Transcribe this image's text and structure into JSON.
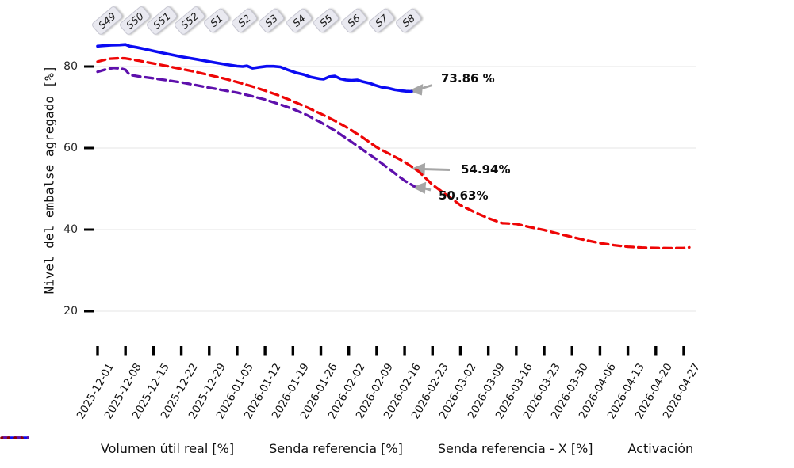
{
  "figure": {
    "week_labels": [
      "S49",
      "S50",
      "S51",
      "S52",
      "S1",
      "S2",
      "S3",
      "S4",
      "S5",
      "S6",
      "S7",
      "S8"
    ]
  },
  "chart_data": {
    "type": "line",
    "ylabel": "Nivel del embalse agregado [%]",
    "xlabel": "",
    "y_ticks": [
      80,
      60,
      40,
      20
    ],
    "ylim": [
      12,
      90
    ],
    "grid": "horizontal",
    "legend_position": "bottom",
    "x_labels": [
      "2025-12-01",
      "2025-12-08",
      "2025-12-15",
      "2025-12-22",
      "2025-12-29",
      "2026-01-05",
      "2026-01-12",
      "2026-01-19",
      "2026-01-26",
      "2026-02-02",
      "2026-02-09",
      "2026-02-16",
      "2026-02-23",
      "2026-03-02",
      "2026-03-09",
      "2026-03-16",
      "2026-03-23",
      "2026-03-30",
      "2026-04-06",
      "2026-04-13",
      "2026-04-20",
      "2026-04-27"
    ],
    "annotations": [
      {
        "text": "73.86 %",
        "series": "Volumen útil real [%]",
        "value": 73.86
      },
      {
        "text": "54.94%",
        "series": "Senda referencia [%]",
        "value": 54.94
      },
      {
        "text": "50.63%",
        "series": "Senda referencia - X [%]",
        "value": 50.63
      }
    ],
    "series": [
      {
        "name": "Volumen útil real [%]",
        "color": "#0b0bf2",
        "style": "solid",
        "points": [
          [
            0,
            85.0
          ],
          [
            0.2,
            85.1
          ],
          [
            0.5,
            85.25
          ],
          [
            0.8,
            85.3
          ],
          [
            1.0,
            85.4
          ],
          [
            1.15,
            85.0
          ],
          [
            1.4,
            84.7
          ],
          [
            1.65,
            84.35
          ],
          [
            2.0,
            83.8
          ],
          [
            2.35,
            83.3
          ],
          [
            2.65,
            82.9
          ],
          [
            3.0,
            82.4
          ],
          [
            3.3,
            82.05
          ],
          [
            3.6,
            81.7
          ],
          [
            4.0,
            81.2
          ],
          [
            4.3,
            80.85
          ],
          [
            4.6,
            80.5
          ],
          [
            5.0,
            80.1
          ],
          [
            5.2,
            80.0
          ],
          [
            5.35,
            80.15
          ],
          [
            5.55,
            79.6
          ],
          [
            5.8,
            79.85
          ],
          [
            6.05,
            80.05
          ],
          [
            6.3,
            80.05
          ],
          [
            6.55,
            79.9
          ],
          [
            6.8,
            79.2
          ],
          [
            7.1,
            78.5
          ],
          [
            7.4,
            78.0
          ],
          [
            7.65,
            77.4
          ],
          [
            7.95,
            77.0
          ],
          [
            8.1,
            76.9
          ],
          [
            8.3,
            77.5
          ],
          [
            8.5,
            77.65
          ],
          [
            8.7,
            77.0
          ],
          [
            8.9,
            76.7
          ],
          [
            9.1,
            76.6
          ],
          [
            9.3,
            76.7
          ],
          [
            9.5,
            76.3
          ],
          [
            9.75,
            75.9
          ],
          [
            9.95,
            75.4
          ],
          [
            10.2,
            74.9
          ],
          [
            10.4,
            74.7
          ],
          [
            10.65,
            74.3
          ],
          [
            10.85,
            74.1
          ],
          [
            11.05,
            73.95
          ],
          [
            11.25,
            73.86
          ]
        ]
      },
      {
        "name": "Senda referencia [%]",
        "color": "#ee0606",
        "style": "dashed",
        "points": [
          [
            0,
            81.2
          ],
          [
            0.4,
            81.9
          ],
          [
            0.8,
            82.05
          ],
          [
            1.0,
            82.0
          ],
          [
            1.5,
            81.4
          ],
          [
            2.0,
            80.75
          ],
          [
            2.5,
            80.1
          ],
          [
            3.0,
            79.4
          ],
          [
            3.5,
            78.7
          ],
          [
            4.0,
            77.9
          ],
          [
            4.5,
            77.1
          ],
          [
            5.0,
            76.2
          ],
          [
            5.5,
            75.2
          ],
          [
            6.0,
            74.1
          ],
          [
            6.5,
            72.9
          ],
          [
            7.0,
            71.5
          ],
          [
            7.5,
            70.0
          ],
          [
            8.0,
            68.4
          ],
          [
            8.5,
            66.7
          ],
          [
            9.0,
            64.8
          ],
          [
            9.5,
            62.6
          ],
          [
            10.0,
            60.2
          ],
          [
            10.5,
            58.4
          ],
          [
            11.0,
            56.6
          ],
          [
            11.5,
            54.3
          ],
          [
            12.0,
            51.0
          ],
          [
            12.5,
            48.5
          ],
          [
            13.0,
            46.0
          ],
          [
            13.5,
            44.3
          ],
          [
            14.0,
            42.8
          ],
          [
            14.5,
            41.6
          ],
          [
            15.0,
            41.4
          ],
          [
            15.5,
            40.6
          ],
          [
            16.0,
            39.9
          ],
          [
            16.5,
            39.0
          ],
          [
            17.0,
            38.2
          ],
          [
            17.5,
            37.4
          ],
          [
            18.0,
            36.7
          ],
          [
            18.5,
            36.2
          ],
          [
            19.0,
            35.8
          ],
          [
            19.5,
            35.6
          ],
          [
            20.0,
            35.5
          ],
          [
            20.5,
            35.45
          ],
          [
            21.0,
            35.5
          ],
          [
            21.2,
            35.65
          ]
        ]
      },
      {
        "name": "Senda referencia - X [%]",
        "color": "#5e10ac",
        "style": "dashed",
        "points": [
          [
            0,
            78.7
          ],
          [
            0.35,
            79.4
          ],
          [
            0.6,
            79.65
          ],
          [
            0.85,
            79.5
          ],
          [
            1.0,
            79.2
          ],
          [
            1.15,
            77.95
          ],
          [
            1.5,
            77.55
          ],
          [
            2.0,
            77.1
          ],
          [
            2.5,
            76.6
          ],
          [
            3.0,
            76.1
          ],
          [
            3.5,
            75.45
          ],
          [
            4.0,
            74.8
          ],
          [
            4.5,
            74.2
          ],
          [
            5.0,
            73.6
          ],
          [
            5.5,
            72.8
          ],
          [
            6.0,
            71.9
          ],
          [
            6.5,
            70.8
          ],
          [
            7.0,
            69.6
          ],
          [
            7.5,
            68.1
          ],
          [
            8.0,
            66.3
          ],
          [
            8.5,
            64.3
          ],
          [
            9.0,
            62.0
          ],
          [
            9.5,
            59.6
          ],
          [
            10.0,
            57.2
          ],
          [
            10.5,
            54.6
          ],
          [
            11.0,
            52.0
          ],
          [
            11.35,
            50.63
          ]
        ]
      },
      {
        "name": "Activación",
        "color": "#8b0000",
        "style": "dotted",
        "points": []
      }
    ]
  }
}
